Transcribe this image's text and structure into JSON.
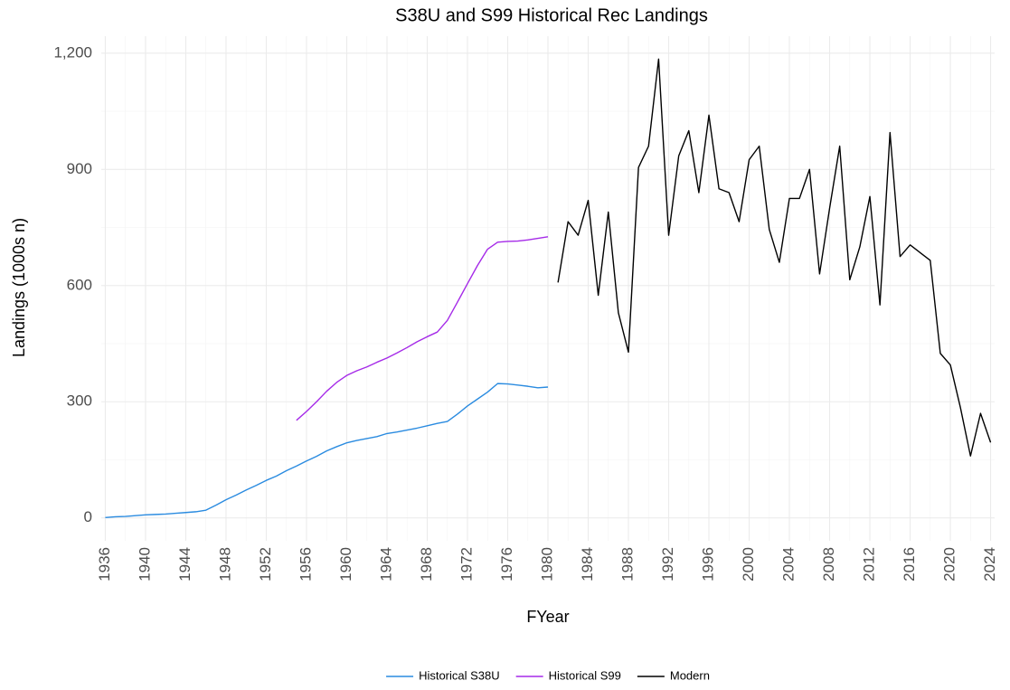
{
  "chart_data": {
    "type": "line",
    "title": "S38U and S99 Historical Rec Landings",
    "xlabel": "FYear",
    "ylabel": "Landings (1000s n)",
    "x": [
      1936,
      1937,
      1938,
      1939,
      1940,
      1941,
      1942,
      1943,
      1944,
      1945,
      1946,
      1947,
      1948,
      1949,
      1950,
      1951,
      1952,
      1953,
      1954,
      1955,
      1956,
      1957,
      1958,
      1959,
      1960,
      1961,
      1962,
      1963,
      1964,
      1965,
      1966,
      1967,
      1968,
      1969,
      1970,
      1971,
      1972,
      1973,
      1974,
      1975,
      1976,
      1977,
      1978,
      1979,
      1980,
      1981,
      1982,
      1983,
      1984,
      1985,
      1986,
      1987,
      1988,
      1989,
      1990,
      1991,
      1992,
      1993,
      1994,
      1995,
      1996,
      1997,
      1998,
      1999,
      2000,
      2001,
      2002,
      2003,
      2004,
      2005,
      2006,
      2007,
      2008,
      2009,
      2010,
      2011,
      2012,
      2013,
      2014,
      2015,
      2016,
      2017,
      2018,
      2019,
      2020,
      2021,
      2022,
      2023,
      2024
    ],
    "series": [
      {
        "name": "Historical S38U",
        "color": "#2a8be0",
        "values": [
          1,
          3,
          4,
          6,
          8,
          9,
          10,
          12,
          14,
          16,
          20,
          33,
          47,
          59,
          72,
          84,
          97,
          108,
          122,
          134,
          147,
          159,
          173,
          184,
          194,
          200,
          205,
          210,
          218,
          222,
          227,
          232,
          238,
          244,
          249,
          268,
          289,
          307,
          325,
          347,
          346,
          343,
          340,
          336,
          338,
          null,
          null,
          null,
          null,
          null,
          null,
          null,
          null,
          null,
          null,
          null,
          null,
          null,
          null,
          null,
          null,
          null,
          null,
          null,
          null,
          null,
          null,
          null,
          null,
          null,
          null,
          null,
          null,
          null,
          null,
          null,
          null,
          null,
          null,
          null,
          null,
          null,
          null,
          null,
          null,
          null,
          null,
          null,
          null
        ]
      },
      {
        "name": "Historical S99",
        "color": "#a52ae8",
        "values": [
          null,
          null,
          null,
          null,
          null,
          null,
          null,
          null,
          null,
          null,
          null,
          null,
          null,
          null,
          null,
          null,
          null,
          null,
          null,
          252,
          275,
          300,
          327,
          350,
          368,
          380,
          390,
          402,
          413,
          426,
          440,
          455,
          468,
          480,
          510,
          557,
          605,
          652,
          694,
          712,
          714,
          715,
          718,
          722,
          726,
          null,
          null,
          null,
          null,
          null,
          null,
          null,
          null,
          null,
          null,
          null,
          null,
          null,
          null,
          null,
          null,
          null,
          null,
          null,
          null,
          null,
          null,
          null,
          null,
          null,
          null,
          null,
          null,
          null,
          null,
          null,
          null,
          null,
          null,
          null,
          null,
          null,
          null,
          null,
          null,
          null,
          null,
          null,
          null
        ]
      },
      {
        "name": "Modern",
        "color": "#000000",
        "values": [
          null,
          null,
          null,
          null,
          null,
          null,
          null,
          null,
          null,
          null,
          null,
          null,
          null,
          null,
          null,
          null,
          null,
          null,
          null,
          null,
          null,
          null,
          null,
          null,
          null,
          null,
          null,
          null,
          null,
          null,
          null,
          null,
          null,
          null,
          null,
          null,
          null,
          null,
          null,
          null,
          null,
          null,
          null,
          null,
          null,
          608,
          765,
          730,
          820,
          575,
          790,
          530,
          428,
          905,
          960,
          1185,
          730,
          935,
          1000,
          840,
          1040,
          850,
          840,
          765,
          925,
          960,
          745,
          660,
          825,
          825,
          900,
          630,
          800,
          960,
          615,
          700,
          830,
          550,
          995,
          675,
          705,
          685,
          665,
          425,
          395,
          285,
          160,
          270,
          195
        ]
      }
    ],
    "xlim": [
      1935.6,
      2024.4
    ],
    "xticks": [
      1936,
      1940,
      1944,
      1948,
      1952,
      1956,
      1960,
      1964,
      1968,
      1972,
      1976,
      1980,
      1984,
      1988,
      1992,
      1996,
      2000,
      2004,
      2008,
      2012,
      2016,
      2020,
      2024
    ],
    "ylim": [
      -59,
      1244
    ],
    "yticks": [
      0,
      300,
      600,
      900,
      {
        "value": 1200,
        "label": "1,200"
      }
    ],
    "grid": true,
    "legend": "bottom"
  }
}
